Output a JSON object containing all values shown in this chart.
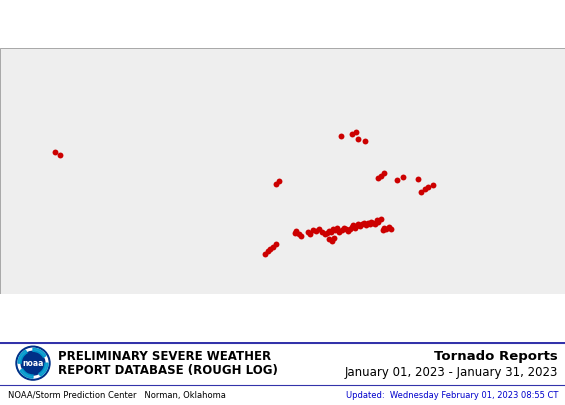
{
  "title_left_line1": "Preliminary Severe Weather",
  "title_left_line2": "Report Database (Rough Log)",
  "title_right_line1": "Tornado Reports",
  "title_right_line2": "January 01, 2023 - January 31, 2023",
  "footer_left": "NOAA/Storm Prediction Center   Norman, Oklahoma",
  "footer_right": "Updated:  Wednesday February 01, 2023 08:55 CT",
  "map_xlim": [
    -126.0,
    -65.0
  ],
  "map_ylim": [
    23.5,
    50.0
  ],
  "background_color": "#ffffff",
  "border_color": "#3333aa",
  "dot_color": "#cc0000",
  "dot_size": 18,
  "noaa_dark": "#003087",
  "noaa_light": "#0099cc",
  "tornado_lons": [
    -97.35,
    -97.05,
    -96.8,
    -96.5,
    -96.15,
    -94.2,
    -94.0,
    -93.75,
    -93.5,
    -92.8,
    -92.5,
    -92.2,
    -91.9,
    -91.55,
    -91.25,
    -90.95,
    -90.7,
    -90.5,
    -90.3,
    -90.1,
    -89.85,
    -89.6,
    -89.35,
    -89.1,
    -88.9,
    -88.65,
    -88.45,
    -88.25,
    -88.05,
    -87.9,
    -87.7,
    -87.55,
    -87.35,
    -87.1,
    -86.9,
    -86.7,
    -86.5,
    -86.3,
    -86.1,
    -85.95,
    -85.75,
    -85.55,
    -85.35,
    -85.15,
    -84.9,
    -84.7,
    -84.5,
    -84.3,
    -84.05,
    -83.8,
    -90.45,
    -90.2,
    -89.95,
    -89.2,
    -87.4,
    -86.55,
    -85.15,
    -84.85,
    -84.5,
    -83.1,
    -82.45,
    -80.9,
    -80.5,
    -80.15,
    -79.75,
    -79.3,
    -96.25,
    -95.9,
    -119.55,
    -120.1,
    -88.05,
    -87.55
  ],
  "tornado_lats": [
    27.75,
    28.1,
    28.35,
    28.6,
    28.9,
    30.05,
    30.3,
    30.0,
    29.75,
    30.2,
    30.0,
    30.4,
    30.3,
    30.5,
    30.2,
    30.0,
    30.1,
    30.3,
    30.15,
    30.5,
    30.4,
    30.6,
    30.2,
    30.4,
    30.6,
    30.5,
    30.3,
    30.5,
    30.7,
    30.9,
    30.6,
    30.8,
    31.0,
    30.8,
    31.0,
    31.2,
    30.9,
    31.1,
    31.0,
    31.3,
    31.2,
    31.0,
    31.5,
    31.3,
    31.6,
    30.4,
    30.6,
    30.5,
    30.7,
    30.5,
    29.4,
    29.2,
    29.5,
    40.5,
    40.2,
    40.0,
    36.0,
    36.2,
    36.5,
    35.8,
    36.1,
    35.9,
    34.5,
    34.8,
    35.0,
    35.2,
    35.4,
    35.7,
    38.5,
    38.8,
    40.8,
    41.0
  ]
}
